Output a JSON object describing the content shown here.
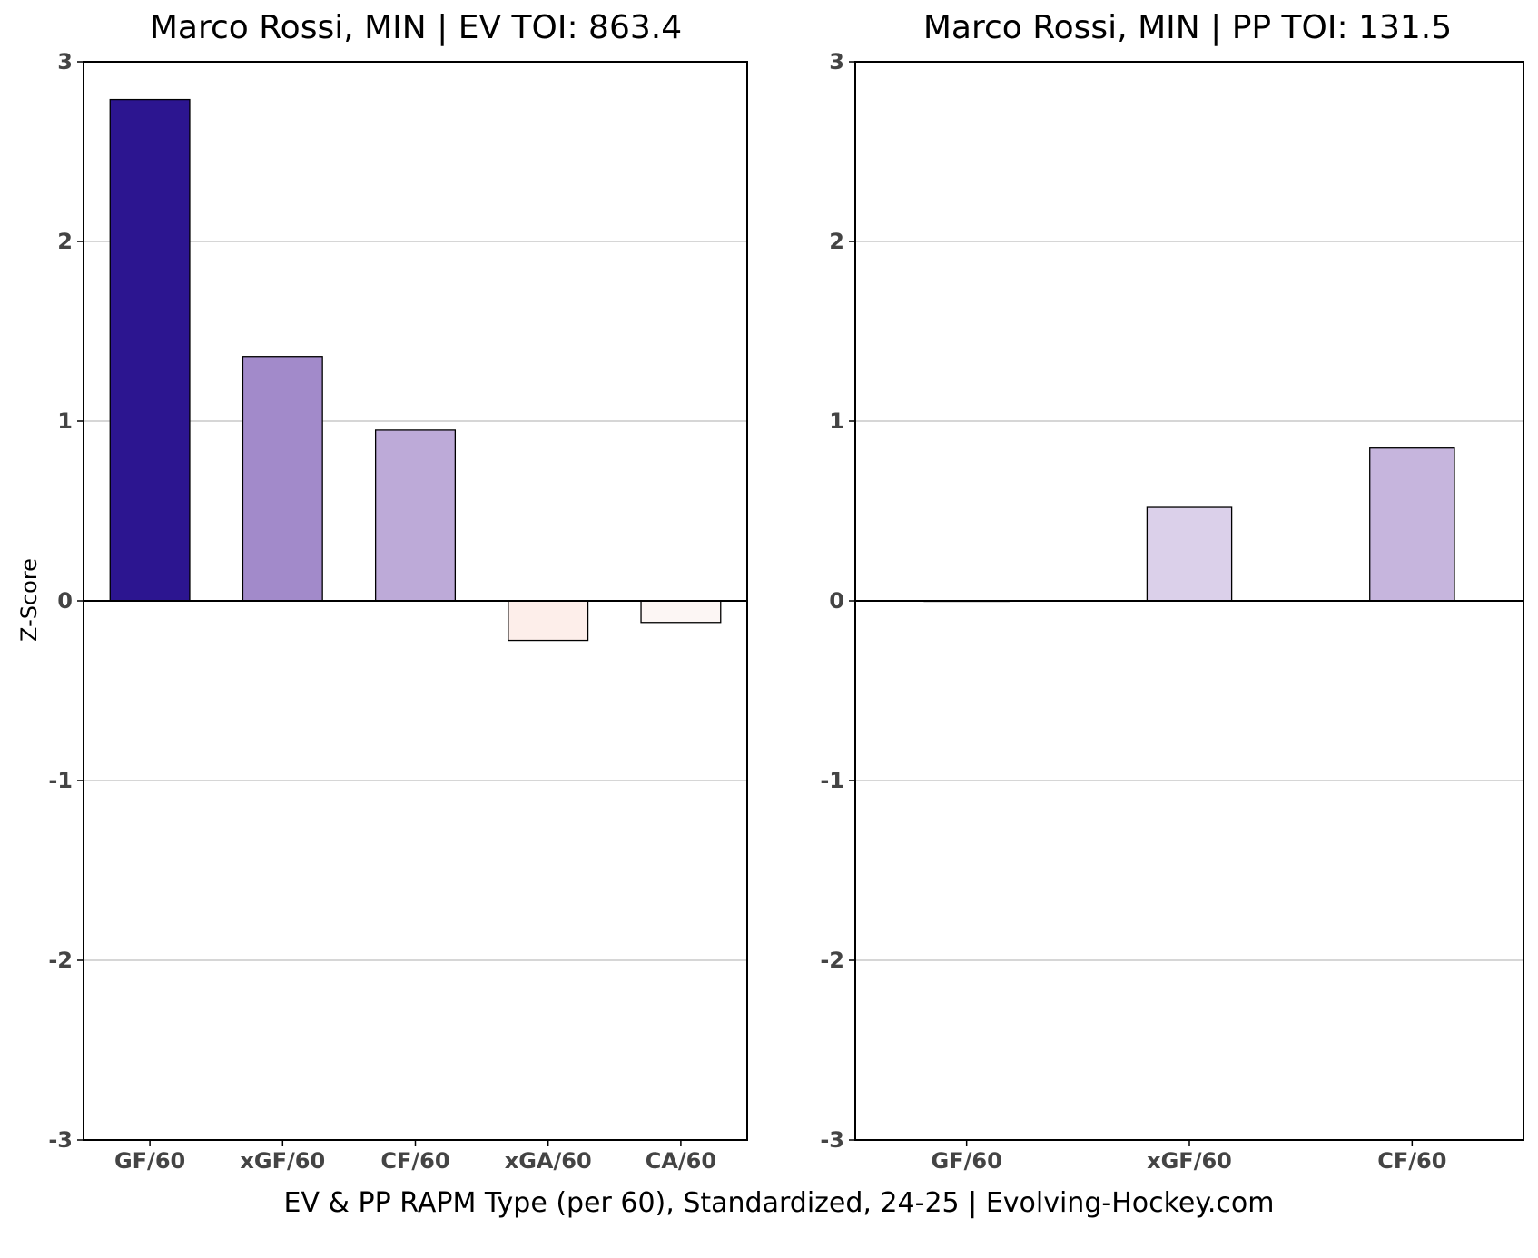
{
  "caption": "EV & PP RAPM Type (per 60), Standardized, 24-25    |    Evolving-Hockey.com",
  "chart_data": [
    {
      "type": "bar",
      "title": "Marco Rossi, MIN  |  EV TOI: 863.4",
      "xlabel": "",
      "ylabel": "Z-Score",
      "ylim": [
        -3,
        3
      ],
      "yticks": [
        -3,
        -2,
        -1,
        0,
        1,
        2,
        3
      ],
      "grid": true,
      "categories": [
        "GF/60",
        "xGF/60",
        "CF/60",
        "xGA/60",
        "CA/60"
      ],
      "values": [
        2.79,
        1.36,
        0.95,
        -0.22,
        -0.12
      ],
      "colors": [
        "#2c1590",
        "#a28aca",
        "#bdaad8",
        "#fdeeea",
        "#fcf6f4"
      ]
    },
    {
      "type": "bar",
      "title": "Marco Rossi, MIN  |  PP TOI: 131.5",
      "xlabel": "",
      "ylabel": "",
      "ylim": [
        -3,
        3
      ],
      "yticks": [
        -3,
        -2,
        -1,
        0,
        1,
        2,
        3
      ],
      "grid": true,
      "categories": [
        "GF/60",
        "xGF/60",
        "CF/60"
      ],
      "values": [
        0.0,
        0.52,
        0.85
      ],
      "colors": [
        "#ffffff",
        "#dbd0ea",
        "#c6b5dd"
      ]
    }
  ]
}
